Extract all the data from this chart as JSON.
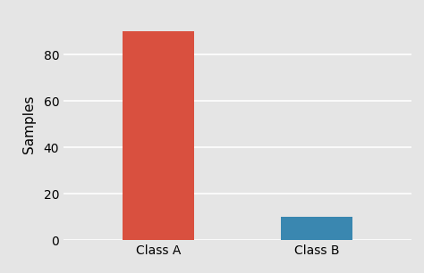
{
  "categories": [
    "Class A",
    "Class B"
  ],
  "values": [
    90,
    10
  ],
  "bar_colors": [
    "#d9503f",
    "#3a87b0"
  ],
  "ylabel": "Samples",
  "xlabel": "",
  "ylim": [
    0,
    100
  ],
  "yticks": [
    0,
    20,
    40,
    60,
    80
  ],
  "background_color": "#e5e5e5",
  "bar_width": 0.45,
  "axis_fontsize": 11,
  "tick_fontsize": 10,
  "grid_color": "#ffffff",
  "grid_linewidth": 1.2
}
